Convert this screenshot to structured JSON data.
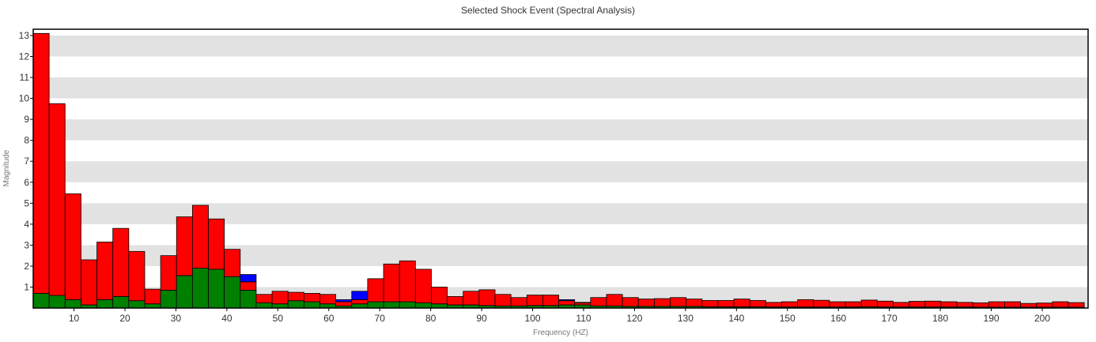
{
  "chart_data": {
    "type": "bar",
    "title": "Selected Shock Event (Spectral Analysis)",
    "xlabel": "Frequency (HZ)",
    "ylabel": "Magnitude",
    "xlim": [
      2,
      209
    ],
    "ylim": [
      0,
      13.3
    ],
    "x_ticks": [
      10,
      20,
      30,
      40,
      50,
      60,
      70,
      80,
      90,
      100,
      110,
      120,
      130,
      140,
      150,
      160,
      170,
      180,
      190,
      200
    ],
    "y_ticks": [
      1,
      2,
      3,
      4,
      5,
      6,
      7,
      8,
      9,
      10,
      11,
      12,
      13
    ],
    "grid": "horizontal-bands",
    "band_color": "#e2e2e2",
    "bin_width": 3.125,
    "stacked": true,
    "x": [
      3.5625,
      6.6875,
      9.8125,
      12.9375,
      16.0625,
      19.1875,
      22.3125,
      25.4375,
      28.5625,
      31.6875,
      34.8125,
      37.9375,
      41.0625,
      44.1875,
      47.3125,
      50.4375,
      53.5625,
      56.6875,
      59.8125,
      62.9375,
      66.0625,
      69.1875,
      72.3125,
      75.4375,
      78.5625,
      81.6875,
      84.8125,
      87.9375,
      91.0625,
      94.1875,
      97.3125,
      100.4375,
      103.5625,
      106.6875,
      109.8125,
      112.9375,
      116.0625,
      119.1875,
      122.3125,
      125.4375,
      128.5625,
      131.6875,
      134.8125,
      137.9375,
      141.0625,
      144.1875,
      147.3125,
      150.4375,
      153.5625,
      156.6875,
      159.8125,
      162.9375,
      166.0625,
      169.1875,
      172.3125,
      175.4375,
      178.5625,
      181.6875,
      184.8125,
      187.9375,
      191.0625,
      194.1875,
      197.3125,
      200.4375,
      203.5625,
      206.6875
    ],
    "series": [
      {
        "color": "#008000",
        "values": [
          0.7,
          0.6,
          0.4,
          0.15,
          0.4,
          0.55,
          0.35,
          0.2,
          0.85,
          1.55,
          1.9,
          1.85,
          1.5,
          0.85,
          0.25,
          0.2,
          0.35,
          0.3,
          0.2,
          0.1,
          0.2,
          0.3,
          0.3,
          0.3,
          0.25,
          0.2,
          0.15,
          0.15,
          0.12,
          0.1,
          0.1,
          0.12,
          0.12,
          0.15,
          0.15,
          0.1,
          0.1,
          0.08,
          0.08,
          0.08,
          0.08,
          0.08,
          0.06,
          0.06,
          0.06,
          0.06,
          0.05,
          0.05,
          0.05,
          0.05,
          0.05,
          0.05,
          0.06,
          0.05,
          0.05,
          0.05,
          0.05,
          0.05,
          0.05,
          0.04,
          0.04,
          0.04,
          0.04,
          0.04,
          0.04,
          0.04
        ]
      },
      {
        "color": "#ff0000",
        "values": [
          12.4,
          9.15,
          5.05,
          2.15,
          2.75,
          3.25,
          2.35,
          0.7,
          1.65,
          2.8,
          3.0,
          2.4,
          1.3,
          0.4,
          0.4,
          0.6,
          0.4,
          0.4,
          0.45,
          0.2,
          0.2,
          1.1,
          1.8,
          1.95,
          1.6,
          0.8,
          0.4,
          0.65,
          0.75,
          0.55,
          0.4,
          0.5,
          0.5,
          0.2,
          0.1,
          0.4,
          0.55,
          0.42,
          0.35,
          0.37,
          0.42,
          0.35,
          0.3,
          0.3,
          0.37,
          0.3,
          0.22,
          0.25,
          0.35,
          0.32,
          0.25,
          0.25,
          0.32,
          0.28,
          0.22,
          0.27,
          0.28,
          0.25,
          0.22,
          0.21,
          0.26,
          0.26,
          0.18,
          0.2,
          0.26,
          0.22
        ]
      },
      {
        "color": "#0000ff",
        "values": [
          0,
          0,
          0,
          0,
          0,
          0,
          0,
          0,
          0,
          0,
          0,
          0,
          0,
          0.35,
          0,
          0,
          0,
          0,
          0,
          0.1,
          0.4,
          0,
          0,
          0,
          0,
          0,
          0,
          0,
          0,
          0,
          0,
          0,
          0,
          0.05,
          0.02,
          0,
          0,
          0,
          0,
          0,
          0,
          0,
          0,
          0,
          0,
          0,
          0,
          0,
          0,
          0,
          0,
          0,
          0,
          0,
          0,
          0,
          0,
          0,
          0,
          0,
          0,
          0,
          0,
          0,
          0,
          0
        ]
      }
    ]
  }
}
